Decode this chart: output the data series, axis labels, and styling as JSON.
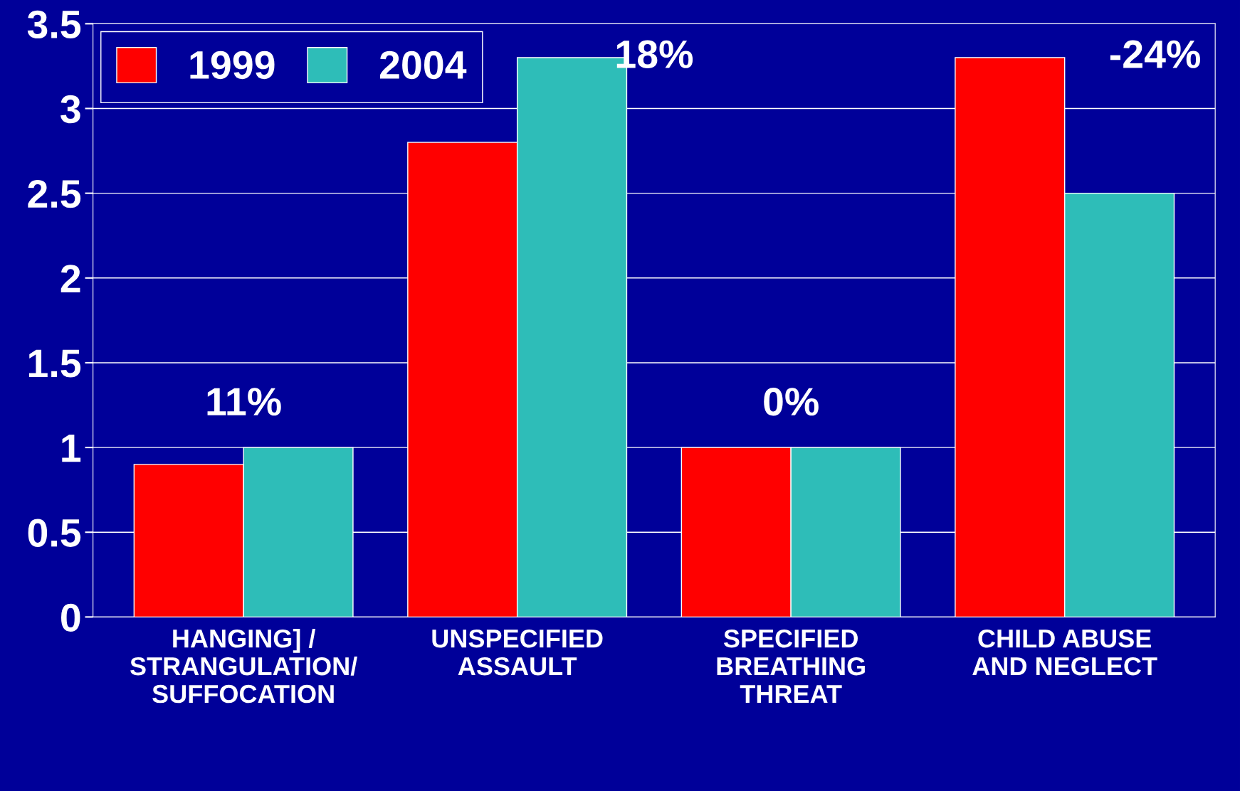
{
  "chart_data": {
    "type": "bar",
    "categories": [
      "HANGING] /\nSTRANGULATION/\nSUFFOCATION",
      "UNSPECIFIED\nASSAULT",
      "SPECIFIED\nBREATHING\nTHREAT",
      "CHILD ABUSE\nAND NEGLECT"
    ],
    "series": [
      {
        "name": "1999",
        "color": "#ff0000",
        "values": [
          0.9,
          2.8,
          1.0,
          3.3
        ]
      },
      {
        "name": "2004",
        "color": "#2ebdb8",
        "values": [
          1.0,
          3.3,
          1.0,
          2.5
        ]
      }
    ],
    "ylim": [
      0,
      3.5
    ],
    "yticks": [
      0,
      0.5,
      1,
      1.5,
      2,
      2.5,
      3,
      3.5
    ],
    "grid": "y",
    "legend": "top left",
    "annotations": [
      "11%",
      "18%",
      "0%",
      "-24%"
    ]
  }
}
